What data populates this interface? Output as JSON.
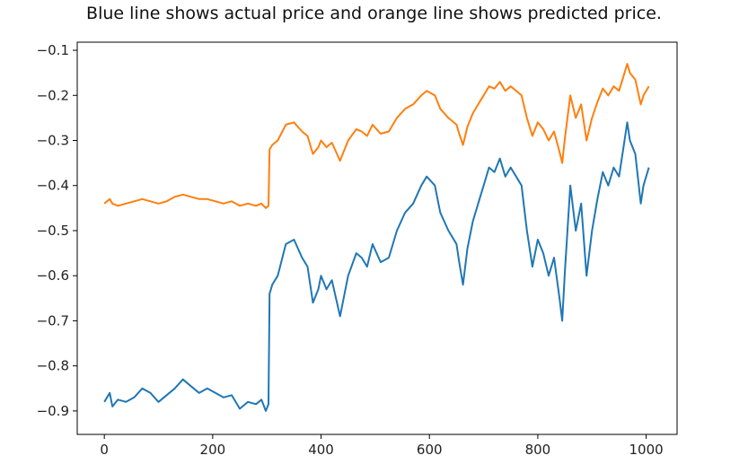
{
  "chart_data": {
    "type": "line",
    "title": "Blue line shows actual price and orange line shows predicted price.",
    "xlabel": "",
    "ylabel": "",
    "xlim": [
      -50,
      1057
    ],
    "ylim": [
      -0.952,
      -0.082
    ],
    "grid": false,
    "x_ticks": [
      0,
      200,
      400,
      600,
      800,
      1000
    ],
    "y_ticks": [
      -0.1,
      -0.2,
      -0.3,
      -0.4,
      -0.5,
      -0.6,
      -0.7,
      -0.8,
      -0.9
    ],
    "x_tick_labels": [
      "0",
      "200",
      "400",
      "600",
      "800",
      "1000"
    ],
    "y_tick_labels": [
      "−0.1",
      "−0.2",
      "−0.3",
      "−0.4",
      "−0.5",
      "−0.6",
      "−0.7",
      "−0.8",
      "−0.9"
    ],
    "series": [
      {
        "color": "#1f77b4",
        "x": [
          0,
          10,
          15,
          25,
          40,
          55,
          70,
          85,
          100,
          115,
          130,
          145,
          160,
          175,
          190,
          205,
          220,
          235,
          250,
          265,
          280,
          290,
          298,
          303,
          305,
          310,
          320,
          335,
          350,
          365,
          375,
          385,
          395,
          400,
          410,
          420,
          435,
          450,
          465,
          475,
          485,
          495,
          510,
          525,
          540,
          555,
          570,
          585,
          595,
          610,
          620,
          635,
          650,
          655,
          662,
          670,
          680,
          690,
          700,
          710,
          720,
          730,
          740,
          750,
          760,
          770,
          780,
          790,
          800,
          810,
          820,
          830,
          840,
          845,
          850,
          860,
          870,
          880,
          890,
          900,
          910,
          920,
          930,
          940,
          950,
          960,
          965,
          970,
          980,
          990,
          995,
          1000,
          1005
        ],
        "values": [
          -0.88,
          -0.86,
          -0.89,
          -0.875,
          -0.88,
          -0.87,
          -0.85,
          -0.86,
          -0.88,
          -0.865,
          -0.85,
          -0.83,
          -0.845,
          -0.86,
          -0.85,
          -0.86,
          -0.87,
          -0.865,
          -0.895,
          -0.88,
          -0.885,
          -0.875,
          -0.9,
          -0.885,
          -0.64,
          -0.62,
          -0.6,
          -0.53,
          -0.52,
          -0.56,
          -0.58,
          -0.66,
          -0.63,
          -0.6,
          -0.63,
          -0.61,
          -0.69,
          -0.6,
          -0.55,
          -0.56,
          -0.58,
          -0.53,
          -0.57,
          -0.56,
          -0.5,
          -0.46,
          -0.44,
          -0.4,
          -0.38,
          -0.4,
          -0.46,
          -0.5,
          -0.53,
          -0.57,
          -0.62,
          -0.54,
          -0.48,
          -0.44,
          -0.4,
          -0.36,
          -0.37,
          -0.34,
          -0.38,
          -0.36,
          -0.38,
          -0.4,
          -0.5,
          -0.58,
          -0.52,
          -0.55,
          -0.6,
          -0.56,
          -0.65,
          -0.7,
          -0.59,
          -0.4,
          -0.5,
          -0.44,
          -0.6,
          -0.5,
          -0.43,
          -0.37,
          -0.4,
          -0.36,
          -0.38,
          -0.3,
          -0.26,
          -0.3,
          -0.33,
          -0.44,
          -0.4,
          -0.38,
          -0.36
        ]
      },
      {
        "color": "#ff7f0e",
        "x": [
          0,
          10,
          15,
          25,
          40,
          55,
          70,
          85,
          100,
          115,
          130,
          145,
          160,
          175,
          190,
          205,
          220,
          235,
          250,
          265,
          280,
          290,
          298,
          303,
          305,
          310,
          320,
          335,
          350,
          365,
          375,
          385,
          395,
          400,
          410,
          420,
          435,
          450,
          465,
          475,
          485,
          495,
          510,
          525,
          540,
          555,
          570,
          585,
          595,
          610,
          620,
          635,
          650,
          655,
          662,
          670,
          680,
          690,
          700,
          710,
          720,
          730,
          740,
          750,
          760,
          770,
          780,
          790,
          800,
          810,
          820,
          830,
          840,
          845,
          850,
          860,
          870,
          880,
          890,
          900,
          910,
          920,
          930,
          940,
          950,
          960,
          965,
          970,
          980,
          990,
          995,
          1000,
          1005
        ],
        "values": [
          -0.44,
          -0.43,
          -0.44,
          -0.445,
          -0.44,
          -0.435,
          -0.43,
          -0.435,
          -0.44,
          -0.435,
          -0.425,
          -0.42,
          -0.425,
          -0.43,
          -0.43,
          -0.435,
          -0.44,
          -0.435,
          -0.445,
          -0.44,
          -0.445,
          -0.44,
          -0.45,
          -0.445,
          -0.32,
          -0.31,
          -0.3,
          -0.265,
          -0.26,
          -0.28,
          -0.29,
          -0.33,
          -0.315,
          -0.3,
          -0.315,
          -0.305,
          -0.345,
          -0.3,
          -0.275,
          -0.28,
          -0.29,
          -0.265,
          -0.285,
          -0.28,
          -0.25,
          -0.23,
          -0.22,
          -0.2,
          -0.19,
          -0.2,
          -0.23,
          -0.25,
          -0.265,
          -0.285,
          -0.31,
          -0.27,
          -0.24,
          -0.22,
          -0.2,
          -0.18,
          -0.185,
          -0.17,
          -0.19,
          -0.18,
          -0.19,
          -0.2,
          -0.25,
          -0.29,
          -0.26,
          -0.275,
          -0.3,
          -0.28,
          -0.325,
          -0.35,
          -0.295,
          -0.2,
          -0.25,
          -0.22,
          -0.3,
          -0.25,
          -0.215,
          -0.185,
          -0.2,
          -0.18,
          -0.19,
          -0.15,
          -0.13,
          -0.15,
          -0.165,
          -0.22,
          -0.2,
          -0.19,
          -0.18
        ]
      }
    ]
  }
}
